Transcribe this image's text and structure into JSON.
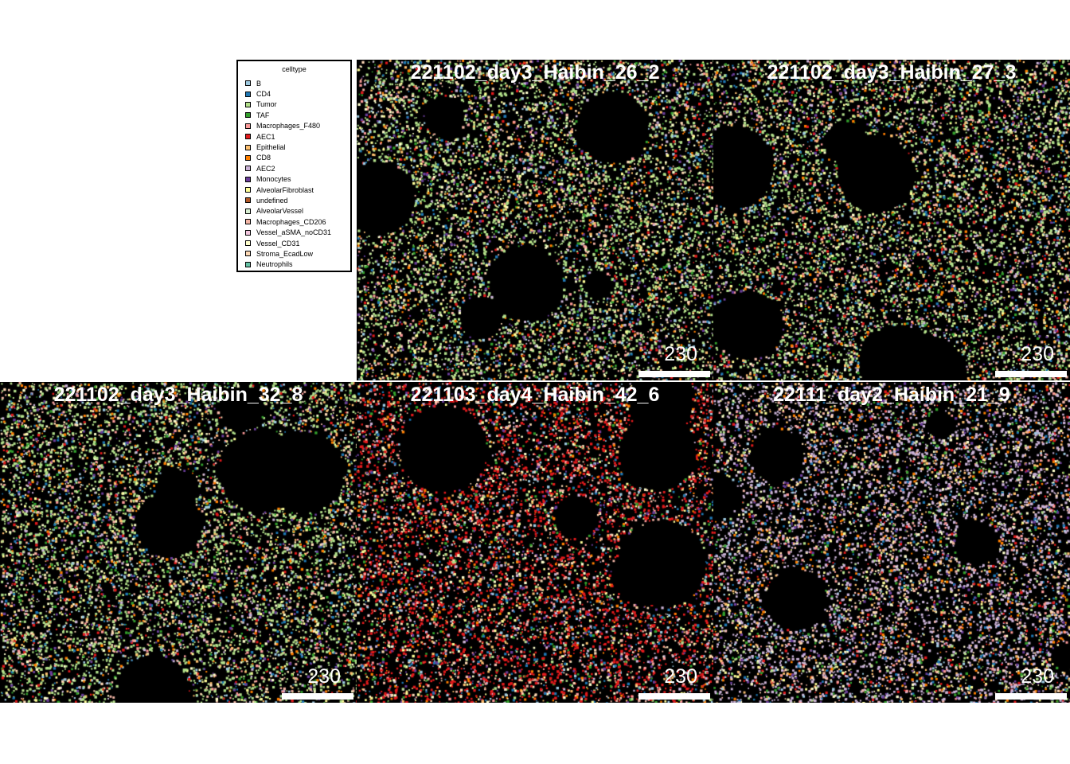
{
  "legend": {
    "title": "celltype",
    "items": [
      {
        "label": "B",
        "color": "#9ecae1"
      },
      {
        "label": "CD4",
        "color": "#1f78b4"
      },
      {
        "label": "Tumor",
        "color": "#b2df8a"
      },
      {
        "label": "TAF",
        "color": "#33a02c"
      },
      {
        "label": "Macrophages_F480",
        "color": "#fb9a99"
      },
      {
        "label": "AEC1",
        "color": "#e31a1c"
      },
      {
        "label": "Epithelial",
        "color": "#fdbf6f"
      },
      {
        "label": "CD8",
        "color": "#ff7f00"
      },
      {
        "label": "AEC2",
        "color": "#cab2d6"
      },
      {
        "label": "Monocytes",
        "color": "#6a3d9a"
      },
      {
        "label": "AlveolarFibroblast",
        "color": "#ffff99"
      },
      {
        "label": "undefined",
        "color": "#b15928"
      },
      {
        "label": "AlveolarVessel",
        "color": "#d9f0d3"
      },
      {
        "label": "Macrophages_CD206",
        "color": "#f4b6a6"
      },
      {
        "label": "Vessel_aSMA_noCD31",
        "color": "#f2c6de"
      },
      {
        "label": "Vessel_CD31",
        "color": "#ffffcc"
      },
      {
        "label": "Stroma_EcadLow",
        "color": "#fdd9b5"
      },
      {
        "label": "Neutrophils",
        "color": "#66c2a5"
      }
    ]
  },
  "panels": [
    {
      "title": "221102_day3_Haibin_26_2",
      "scale_label": "230",
      "dominant": "Tumor"
    },
    {
      "title": "221102_day3_Haibin_27_3",
      "scale_label": "230",
      "dominant": "Tumor"
    },
    {
      "title": "221102_day3_Haibin_32_8",
      "scale_label": "230",
      "dominant": "Tumor"
    },
    {
      "title": "221103_day4_Haibin_42_6",
      "scale_label": "230",
      "dominant": "AEC1"
    },
    {
      "title": "22111_day2_Haibin_21_9",
      "scale_label": "230",
      "dominant": "AEC2"
    }
  ]
}
